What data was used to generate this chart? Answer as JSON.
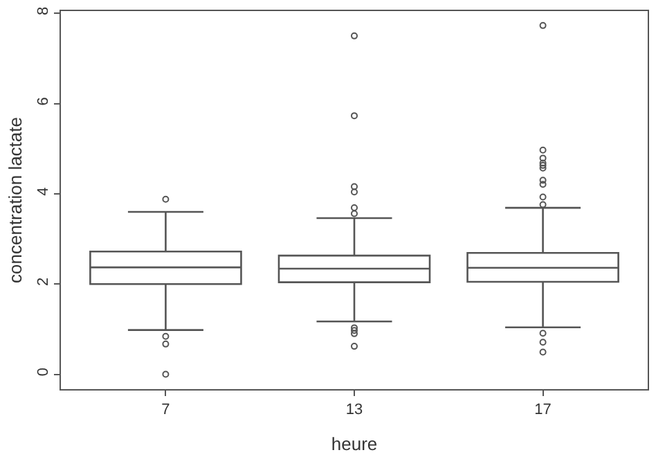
{
  "chart_data": {
    "type": "box",
    "xlabel": "heure",
    "ylabel": "concentration lactate",
    "categories": [
      "7",
      "13",
      "17"
    ],
    "boxes": [
      {
        "low": 0.98,
        "q1": 2.0,
        "median": 2.37,
        "q3": 2.72,
        "high": 3.6,
        "outliers": [
          3.88,
          0.84,
          0.67,
          0.0
        ]
      },
      {
        "low": 1.17,
        "q1": 2.04,
        "median": 2.34,
        "q3": 2.63,
        "high": 3.46,
        "outliers": [
          7.5,
          5.73,
          4.16,
          4.04,
          3.69,
          3.56,
          1.03,
          0.97,
          0.9,
          0.62
        ]
      },
      {
        "low": 1.04,
        "q1": 2.05,
        "median": 2.36,
        "q3": 2.69,
        "high": 3.69,
        "outliers": [
          7.73,
          4.97,
          4.79,
          4.68,
          4.63,
          4.57,
          4.3,
          4.21,
          3.93,
          3.76,
          0.91,
          0.71,
          0.49
        ]
      }
    ],
    "color": "#555555",
    "ylim": [
      -0.33,
      8.05
    ],
    "yticks": [
      0,
      2,
      4,
      6,
      8
    ],
    "marker": "circle"
  }
}
